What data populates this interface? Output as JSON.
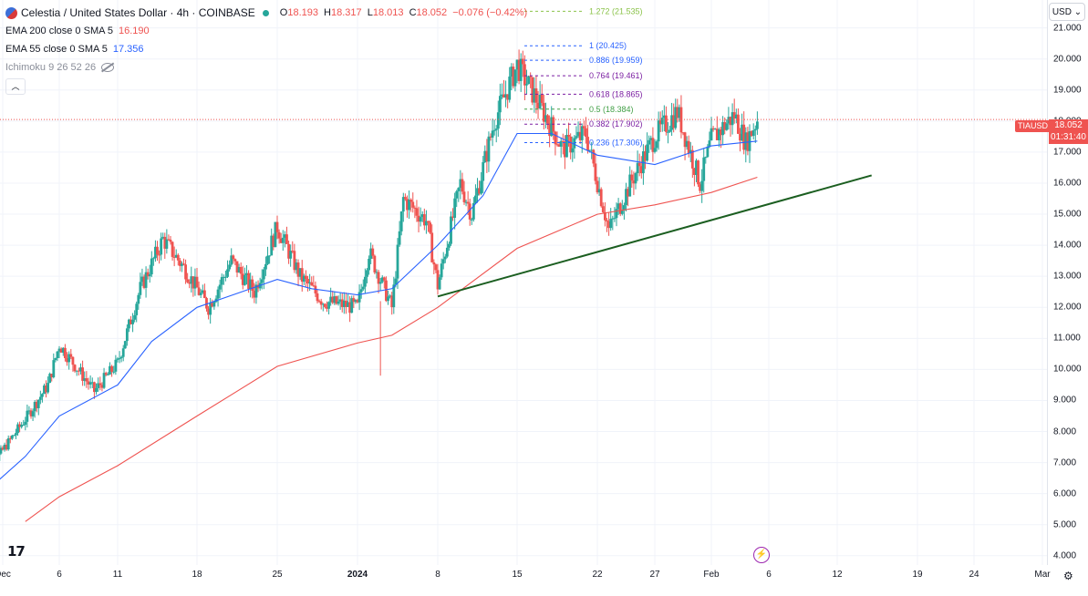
{
  "header": {
    "symbol_title": "Celestia / United States Dollar · 4h · COINBASE",
    "ohlc": {
      "o_label": "O",
      "o": "18.193",
      "h_label": "H",
      "h": "18.317",
      "l_label": "L",
      "l": "18.013",
      "c_label": "C",
      "c": "18.052",
      "change": "−0.076 (−0.42%)"
    },
    "indicators": [
      {
        "name": "EMA 200 close 0 SMA 5",
        "value": "16.190",
        "color": "#ef5350"
      },
      {
        "name": "EMA 55 close 0 SMA 5",
        "value": "17.356",
        "color": "#2962ff"
      },
      {
        "name": "Ichimoku 9 26 52 26",
        "value": ""
      }
    ],
    "collapse_icon": "chevron-up-icon"
  },
  "price_axis": {
    "currency": "USD",
    "ticks": [
      "21.000",
      "20.000",
      "19.000",
      "18.000",
      "17.000",
      "16.000",
      "15.000",
      "14.000",
      "13.000",
      "12.000",
      "11.000",
      "10.000",
      "9.000",
      "8.000",
      "7.000",
      "6.000",
      "5.000",
      "4.000"
    ],
    "symbol_tag": "TIAUSD",
    "last_price": "18.052",
    "countdown": "01:31:40"
  },
  "time_axis": {
    "ticks": [
      {
        "label": "Dec",
        "bold": false
      },
      {
        "label": "6",
        "bold": false
      },
      {
        "label": "11",
        "bold": false
      },
      {
        "label": "18",
        "bold": false
      },
      {
        "label": "25",
        "bold": false
      },
      {
        "label": "2024",
        "bold": true
      },
      {
        "label": "8",
        "bold": false
      },
      {
        "label": "15",
        "bold": false
      },
      {
        "label": "22",
        "bold": false
      },
      {
        "label": "27",
        "bold": false
      },
      {
        "label": "Feb",
        "bold": false
      },
      {
        "label": "6",
        "bold": false
      },
      {
        "label": "12",
        "bold": false
      },
      {
        "label": "19",
        "bold": false
      },
      {
        "label": "24",
        "bold": false
      },
      {
        "label": "Mar",
        "bold": false
      }
    ]
  },
  "chart_data": {
    "type": "line",
    "title": "Celestia / United States Dollar · 4h · COINBASE",
    "ylim": [
      3.7,
      21.9
    ],
    "y_scale": "linear",
    "series": [
      {
        "name": "EMA 200 close 0 SMA 5",
        "color": "#ef5350",
        "x": [
          "Dec 3",
          "Dec 6",
          "Dec 11",
          "Dec 18",
          "Dec 25",
          "Jan 1",
          "Jan 4",
          "Jan 8",
          "Jan 15",
          "Jan 22",
          "Jan 27",
          "Feb 1",
          "Feb 5"
        ],
        "values": [
          5.1,
          5.9,
          6.9,
          8.5,
          10.1,
          10.85,
          11.1,
          12.0,
          13.9,
          15.0,
          15.3,
          15.7,
          16.19
        ]
      },
      {
        "name": "EMA 55 close 0 SMA 5",
        "color": "#2962ff",
        "x": [
          "Nov 30",
          "Dec 3",
          "Dec 6",
          "Dec 11",
          "Dec 14",
          "Dec 18",
          "Dec 25",
          "Dec 28",
          "Jan 1",
          "Jan 4",
          "Jan 8",
          "Jan 12",
          "Jan 15",
          "Jan 18",
          "Jan 22",
          "Jan 27",
          "Feb 1",
          "Feb 5"
        ],
        "values": [
          5.9,
          7.2,
          8.5,
          9.5,
          10.9,
          12.0,
          12.9,
          12.6,
          12.4,
          12.6,
          14.0,
          15.6,
          17.6,
          17.6,
          16.9,
          16.6,
          17.2,
          17.356
        ]
      }
    ],
    "candles": {
      "up_color": "#26a69a",
      "down_color": "#ef5350",
      "ohlc_pivots": [
        [
          "Nov 30",
          6.4
        ],
        [
          "Dec 3",
          8.4
        ],
        [
          "Dec 5",
          9.5
        ],
        [
          "Dec 6",
          10.8
        ],
        [
          "Dec 9",
          9.3
        ],
        [
          "Dec 11",
          10.2
        ],
        [
          "Dec 13",
          12.6
        ],
        [
          "Dec 15",
          14.2
        ],
        [
          "Dec 17",
          13.2
        ],
        [
          "Dec 19",
          12.0
        ],
        [
          "Dec 21",
          13.5
        ],
        [
          "Dec 23",
          12.5
        ],
        [
          "Dec 25",
          14.6
        ],
        [
          "Dec 27",
          13.0
        ],
        [
          "Dec 29",
          12.2
        ],
        [
          "Jan 1",
          12.0
        ],
        [
          "Jan 2",
          13.8
        ],
        [
          "Jan 4",
          12.0
        ],
        [
          "Jan 5",
          15.5
        ],
        [
          "Jan 7",
          14.8
        ],
        [
          "Jan 8",
          12.7
        ],
        [
          "Jan 10",
          16.0
        ],
        [
          "Jan 11",
          15.0
        ],
        [
          "Jan 13",
          18.0
        ],
        [
          "Jan 15",
          19.8
        ],
        [
          "Jan 17",
          18.5
        ],
        [
          "Jan 19",
          17.1
        ],
        [
          "Jan 21",
          17.6
        ],
        [
          "Jan 23",
          14.5
        ],
        [
          "Jan 25",
          16.1
        ],
        [
          "Jan 27",
          17.5
        ],
        [
          "Jan 29",
          18.3
        ],
        [
          "Jan 31",
          16.0
        ],
        [
          "Feb 1",
          17.4
        ],
        [
          "Feb 3",
          18.2
        ],
        [
          "Feb 4",
          17.3
        ],
        [
          "Feb 5",
          18.052
        ]
      ]
    },
    "fibonacci": [
      {
        "label": "1.272 (21.535)",
        "price": 21.535,
        "color": "#8bc34a"
      },
      {
        "label": "1 (20.425)",
        "price": 20.425,
        "color": "#2962ff"
      },
      {
        "label": "0.886 (19.959)",
        "price": 19.959,
        "color": "#2962ff"
      },
      {
        "label": "0.764 (19.461)",
        "price": 19.461,
        "color": "#7b1fa2"
      },
      {
        "label": "0.618 (18.865)",
        "price": 18.865,
        "color": "#7b1fa2"
      },
      {
        "label": "0.5 (18.384)",
        "price": 18.384,
        "color": "#43a047"
      },
      {
        "label": "0.382 (17.902)",
        "price": 17.902,
        "color": "#7b1fa2"
      },
      {
        "label": "0.236 (17.306)",
        "price": 17.306,
        "color": "#2962ff"
      }
    ],
    "trendline": {
      "color": "#1b5e20",
      "from": [
        "Jan 8",
        12.35
      ],
      "to": [
        "Feb 15",
        16.25
      ]
    },
    "last_price_line": {
      "value": 18.052,
      "color": "#ef5350"
    },
    "wick_low": {
      "x": "Jan 3",
      "value": 9.8
    },
    "grid": true
  }
}
